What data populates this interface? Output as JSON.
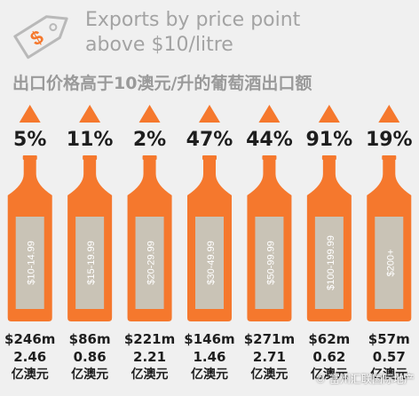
{
  "header": {
    "title_line1": "Exports by price point",
    "title_line2": "above $10/litre",
    "subtitle": "出口价格高于10澳元/升的葡萄酒出口额",
    "tag_symbol": "$"
  },
  "watermark": "© 富州汇联国际地产",
  "colors": {
    "background": "#f0f0f0",
    "accent": "#f5782d",
    "label_panel": "#c9c3b6",
    "title_gray": "#a3a3a3",
    "text": "#1e1e1e"
  },
  "icons": {
    "tag": "price-tag-icon",
    "arrow": "triangle-up-icon",
    "bottle": "wine-bottle-icon"
  },
  "chart_data": {
    "type": "bar",
    "categories": [
      "$10-14.99",
      "$15-19.99",
      "$20-29.99",
      "$30-49.99",
      "$50-99.99",
      "$100-199.99",
      "$200+"
    ],
    "series": [
      {
        "values": [
          5,
          11,
          2,
          47,
          44,
          91,
          19
        ]
      },
      {
        "values": [
          246,
          86,
          221,
          146,
          271,
          62,
          57
        ]
      },
      {
        "values": [
          2.46,
          0.86,
          2.21,
          1.46,
          2.71,
          0.62,
          0.57
        ]
      }
    ],
    "growth_labels": [
      "5%",
      "11%",
      "2%",
      "47%",
      "44%",
      "91%",
      "19%"
    ],
    "value_labels": [
      "$246m",
      "$86m",
      "$221m",
      "$146m",
      "$271m",
      "$62m",
      "$57m"
    ],
    "value_labels_cn": [
      "2.46",
      "0.86",
      "2.21",
      "1.46",
      "2.71",
      "0.62",
      "0.57"
    ],
    "unit_cn": "亿澳元",
    "title": "Exports by price point above $10/litre"
  }
}
